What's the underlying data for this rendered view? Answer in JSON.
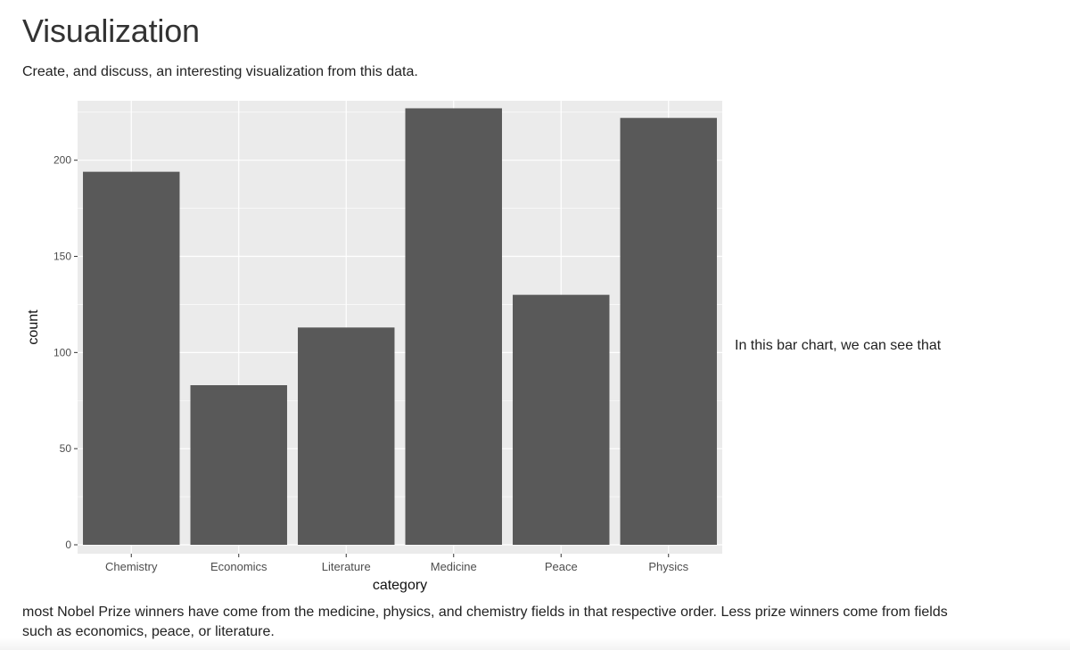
{
  "page": {
    "title": "Visualization",
    "intro": "Create, and discuss, an interesting visualization from this data.",
    "side_note": "In this bar chart, we can see that",
    "body_text": "most Nobel Prize winners have come from the medicine, physics, and chemistry fields in that respective order. Less prize winners come from fields such as economics, peace, or literature."
  },
  "chart_data": {
    "type": "bar",
    "categories": [
      "Chemistry",
      "Economics",
      "Literature",
      "Medicine",
      "Peace",
      "Physics"
    ],
    "values": [
      194,
      83,
      113,
      227,
      130,
      222
    ],
    "title": "",
    "xlabel": "category",
    "ylabel": "count",
    "ylim": [
      0,
      230
    ],
    "yticks": [
      0,
      50,
      100,
      150,
      200
    ],
    "grid": true,
    "legend": "none",
    "colors": {
      "bar": "#595959",
      "panel": "#ebebeb",
      "grid": "#ffffff",
      "axis_text": "#4d4d4d"
    }
  }
}
